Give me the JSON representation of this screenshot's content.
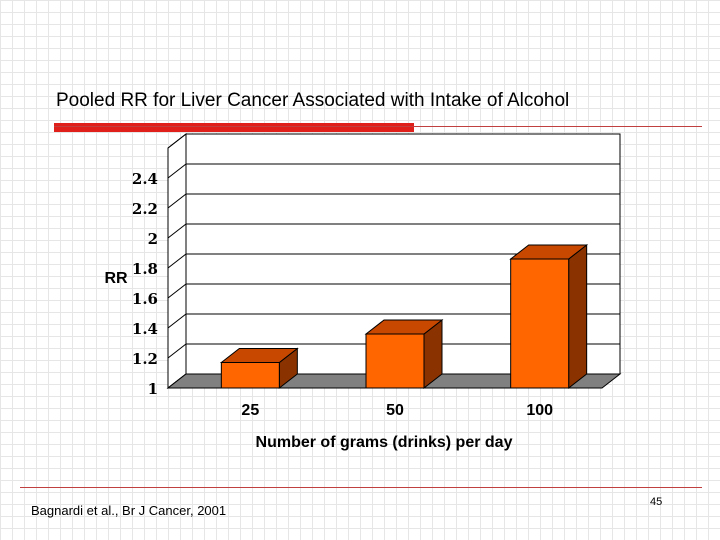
{
  "slide": {
    "title": "Pooled RR for Liver Cancer Associated with Intake of Alcohol",
    "footer": "Bagnardi et al., Br J Cancer, 2001",
    "page_number": "45"
  },
  "colors": {
    "accent_red": "#e0201b",
    "rule_line": "#c04040",
    "bar_front": "#ff6600",
    "bar_top": "#c84800",
    "bar_side": "#8a3300",
    "floor": "#808080"
  },
  "chart_data": {
    "type": "bar",
    "style": "3d",
    "categories": [
      "25",
      "50",
      "100"
    ],
    "values": [
      1.17,
      1.36,
      1.86
    ],
    "ylabel": "RR",
    "xlabel": "Number of grams (drinks) per day",
    "ylim": [
      1,
      2.6
    ],
    "yticks": [
      "1",
      "1.2",
      "1.4",
      "1.6",
      "1.8",
      "2",
      "2.2",
      "2.4"
    ],
    "grid": true
  }
}
